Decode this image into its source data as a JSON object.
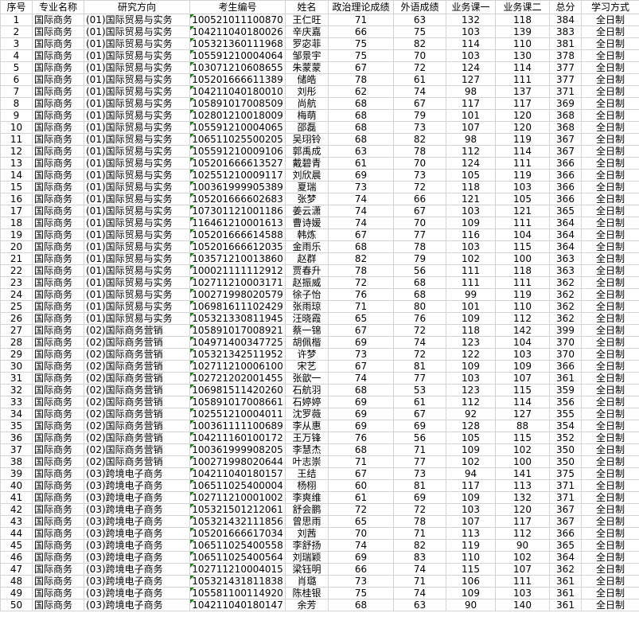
{
  "table": {
    "headers": [
      "序号",
      "专业名称",
      "研究方向",
      "考生编号",
      "姓名",
      "政治理论成绩",
      "外语成绩",
      "业务课一",
      "业务课二",
      "总分",
      "学习方式"
    ],
    "rows": [
      [
        1,
        "国际商务",
        "(01)国际贸易与实务",
        "100521011100870",
        "王仁旺",
        71,
        63,
        132,
        118,
        384,
        "全日制"
      ],
      [
        2,
        "国际商务",
        "(01)国际贸易与实务",
        "104211040180026",
        "辛庆嘉",
        66,
        75,
        103,
        139,
        383,
        "全日制"
      ],
      [
        3,
        "国际商务",
        "(01)国际贸易与实务",
        "105321360111968",
        "罗宓菲",
        75,
        82,
        114,
        110,
        381,
        "全日制"
      ],
      [
        4,
        "国际商务",
        "(01)国际贸易与实务",
        "105591210004064",
        "邹景宇",
        75,
        70,
        103,
        130,
        378,
        "全日制"
      ],
      [
        5,
        "国际商务",
        "(01)国际贸易与实务",
        "103071210608655",
        "朱蒙蒙",
        67,
        72,
        124,
        114,
        377,
        "全日制"
      ],
      [
        6,
        "国际商务",
        "(01)国际贸易与实务",
        "105201666611389",
        "储皓",
        78,
        61,
        127,
        111,
        377,
        "全日制"
      ],
      [
        7,
        "国际商务",
        "(01)国际贸易与实务",
        "104211040180010",
        "刘彤",
        62,
        74,
        98,
        137,
        371,
        "全日制"
      ],
      [
        8,
        "国际商务",
        "(01)国际贸易与实务",
        "105891017008509",
        "尚航",
        68,
        67,
        117,
        117,
        369,
        "全日制"
      ],
      [
        9,
        "国际商务",
        "(01)国际贸易与实务",
        "102801210018009",
        "梅萌",
        68,
        79,
        101,
        120,
        368,
        "全日制"
      ],
      [
        10,
        "国际商务",
        "(01)国际贸易与实务",
        "105591210004065",
        "邵磊",
        68,
        73,
        107,
        120,
        368,
        "全日制"
      ],
      [
        11,
        "国际商务",
        "(01)国际贸易与实务",
        "106511025500205",
        "吴珝铃",
        68,
        82,
        98,
        119,
        367,
        "全日制"
      ],
      [
        12,
        "国际商务",
        "(01)国际贸易与实务",
        "105591210009106",
        "郭禹成",
        63,
        78,
        112,
        114,
        367,
        "全日制"
      ],
      [
        13,
        "国际商务",
        "(01)国际贸易与实务",
        "105201666613527",
        "戴碧青",
        61,
        70,
        124,
        111,
        366,
        "全日制"
      ],
      [
        14,
        "国际商务",
        "(01)国际贸易与实务",
        "102551210009117",
        "刘欣晨",
        69,
        73,
        105,
        119,
        366,
        "全日制"
      ],
      [
        15,
        "国际商务",
        "(01)国际贸易与实务",
        "100361999905389",
        "夏瑞",
        73,
        72,
        118,
        103,
        366,
        "全日制"
      ],
      [
        16,
        "国际商务",
        "(01)国际贸易与实务",
        "105201666602683",
        "张梦",
        74,
        66,
        121,
        105,
        366,
        "全日制"
      ],
      [
        17,
        "国际商务",
        "(01)国际贸易与实务",
        "107301121001186",
        "姜云潇",
        74,
        67,
        103,
        121,
        365,
        "全日制"
      ],
      [
        18,
        "国际商务",
        "(01)国际贸易与实务",
        "116461210001613",
        "曹诗媛",
        74,
        70,
        109,
        111,
        364,
        "全日制"
      ],
      [
        19,
        "国际商务",
        "(01)国际贸易与实务",
        "105201666614588",
        "韩炼",
        67,
        77,
        116,
        104,
        364,
        "全日制"
      ],
      [
        20,
        "国际商务",
        "(01)国际贸易与实务",
        "105201666612035",
        "金雨乐",
        68,
        78,
        103,
        115,
        364,
        "全日制"
      ],
      [
        21,
        "国际商务",
        "(01)国际贸易与实务",
        "103571210013860",
        "赵群",
        82,
        79,
        102,
        100,
        363,
        "全日制"
      ],
      [
        22,
        "国际商务",
        "(01)国际贸易与实务",
        "100021111112912",
        "贾春升",
        78,
        56,
        111,
        118,
        363,
        "全日制"
      ],
      [
        23,
        "国际商务",
        "(01)国际贸易与实务",
        "102711210003171",
        "赵振威",
        72,
        68,
        111,
        111,
        362,
        "全日制"
      ],
      [
        24,
        "国际商务",
        "(01)国际贸易与实务",
        "100271998020579",
        "徐子怡",
        76,
        68,
        99,
        119,
        362,
        "全日制"
      ],
      [
        25,
        "国际商务",
        "(01)国际贸易与实务",
        "106981611102429",
        "张雨琼",
        71,
        80,
        101,
        110,
        362,
        "全日制"
      ],
      [
        26,
        "国际商务",
        "(01)国际贸易与实务",
        "105321330811945",
        "汪晓霞",
        65,
        76,
        109,
        112,
        362,
        "全日制"
      ],
      [
        27,
        "国际商务",
        "(02)国际商务营销",
        "105891017008921",
        "蔡一锦",
        67,
        72,
        118,
        142,
        399,
        "全日制"
      ],
      [
        28,
        "国际商务",
        "(02)国际商务营销",
        "104971400347725",
        "胡佩楷",
        69,
        74,
        123,
        104,
        370,
        "全日制"
      ],
      [
        29,
        "国际商务",
        "(02)国际商务营销",
        "105321342511952",
        "许梦",
        73,
        72,
        122,
        103,
        370,
        "全日制"
      ],
      [
        30,
        "国际商务",
        "(02)国际商务营销",
        "102711210006100",
        "宋艺",
        67,
        81,
        109,
        109,
        366,
        "全日制"
      ],
      [
        31,
        "国际商务",
        "(02)国际商务营销",
        "102721202001455",
        "张歆一",
        74,
        77,
        103,
        107,
        361,
        "全日制"
      ],
      [
        32,
        "国际商务",
        "(02)国际商务营销",
        "106981511420260",
        "石航羽",
        68,
        53,
        123,
        115,
        359,
        "全日制"
      ],
      [
        33,
        "国际商务",
        "(02)国际商务营销",
        "105891017008661",
        "石婷婷",
        69,
        61,
        112,
        114,
        356,
        "全日制"
      ],
      [
        34,
        "国际商务",
        "(02)国际商务营销",
        "102551210004011",
        "沈罗薇",
        69,
        67,
        92,
        127,
        355,
        "全日制"
      ],
      [
        35,
        "国际商务",
        "(02)国际商务营销",
        "100361111100689",
        "李从惠",
        69,
        69,
        128,
        88,
        354,
        "全日制"
      ],
      [
        36,
        "国际商务",
        "(02)国际商务营销",
        "104211160100172",
        "王万锋",
        76,
        56,
        105,
        115,
        352,
        "全日制"
      ],
      [
        37,
        "国际商务",
        "(02)国际商务营销",
        "100361999908205",
        "李慧杰",
        68,
        71,
        109,
        102,
        350,
        "全日制"
      ],
      [
        38,
        "国际商务",
        "(02)国际商务营销",
        "100271998020644",
        "叶志崇",
        71,
        77,
        102,
        100,
        350,
        "全日制"
      ],
      [
        39,
        "国际商务",
        "(03)跨境电子商务",
        "104211040180157",
        "王结",
        67,
        73,
        94,
        141,
        375,
        "全日制"
      ],
      [
        40,
        "国际商务",
        "(03)跨境电子商务",
        "106511025400004",
        "杨栩",
        60,
        81,
        117,
        113,
        371,
        "全日制"
      ],
      [
        41,
        "国际商务",
        "(03)跨境电子商务",
        "102711210001002",
        "李爽维",
        61,
        69,
        109,
        132,
        371,
        "全日制"
      ],
      [
        42,
        "国际商务",
        "(03)跨境电子商务",
        "105321501212061",
        "舒会鹏",
        72,
        72,
        103,
        120,
        367,
        "全日制"
      ],
      [
        43,
        "国际商务",
        "(03)跨境电子商务",
        "105321432111856",
        "曾思雨",
        65,
        78,
        107,
        117,
        367,
        "全日制"
      ],
      [
        44,
        "国际商务",
        "(03)跨境电子商务",
        "105201666617034",
        "刘茜",
        70,
        71,
        113,
        112,
        366,
        "全日制"
      ],
      [
        45,
        "国际商务",
        "(03)跨境电子商务",
        "106511025400558",
        "李舒扬",
        74,
        82,
        119,
        90,
        365,
        "全日制"
      ],
      [
        46,
        "国际商务",
        "(03)跨境电子商务",
        "106511025400564",
        "刘瑞颖",
        69,
        83,
        110,
        102,
        364,
        "全日制"
      ],
      [
        47,
        "国际商务",
        "(03)跨境电子商务",
        "102711210004015",
        "梁钰明",
        66,
        74,
        115,
        107,
        362,
        "全日制"
      ],
      [
        48,
        "国际商务",
        "(03)跨境电子商务",
        "105321431811838",
        "肖璐",
        73,
        71,
        106,
        111,
        361,
        "全日制"
      ],
      [
        49,
        "国际商务",
        "(03)跨境电子商务",
        "105581100114920",
        "陈桂银",
        75,
        74,
        109,
        103,
        361,
        "全日制"
      ],
      [
        50,
        "国际商务",
        "(03)跨境电子商务",
        "104211040180147",
        "余芳",
        68,
        63,
        90,
        140,
        361,
        "全日制"
      ]
    ]
  }
}
